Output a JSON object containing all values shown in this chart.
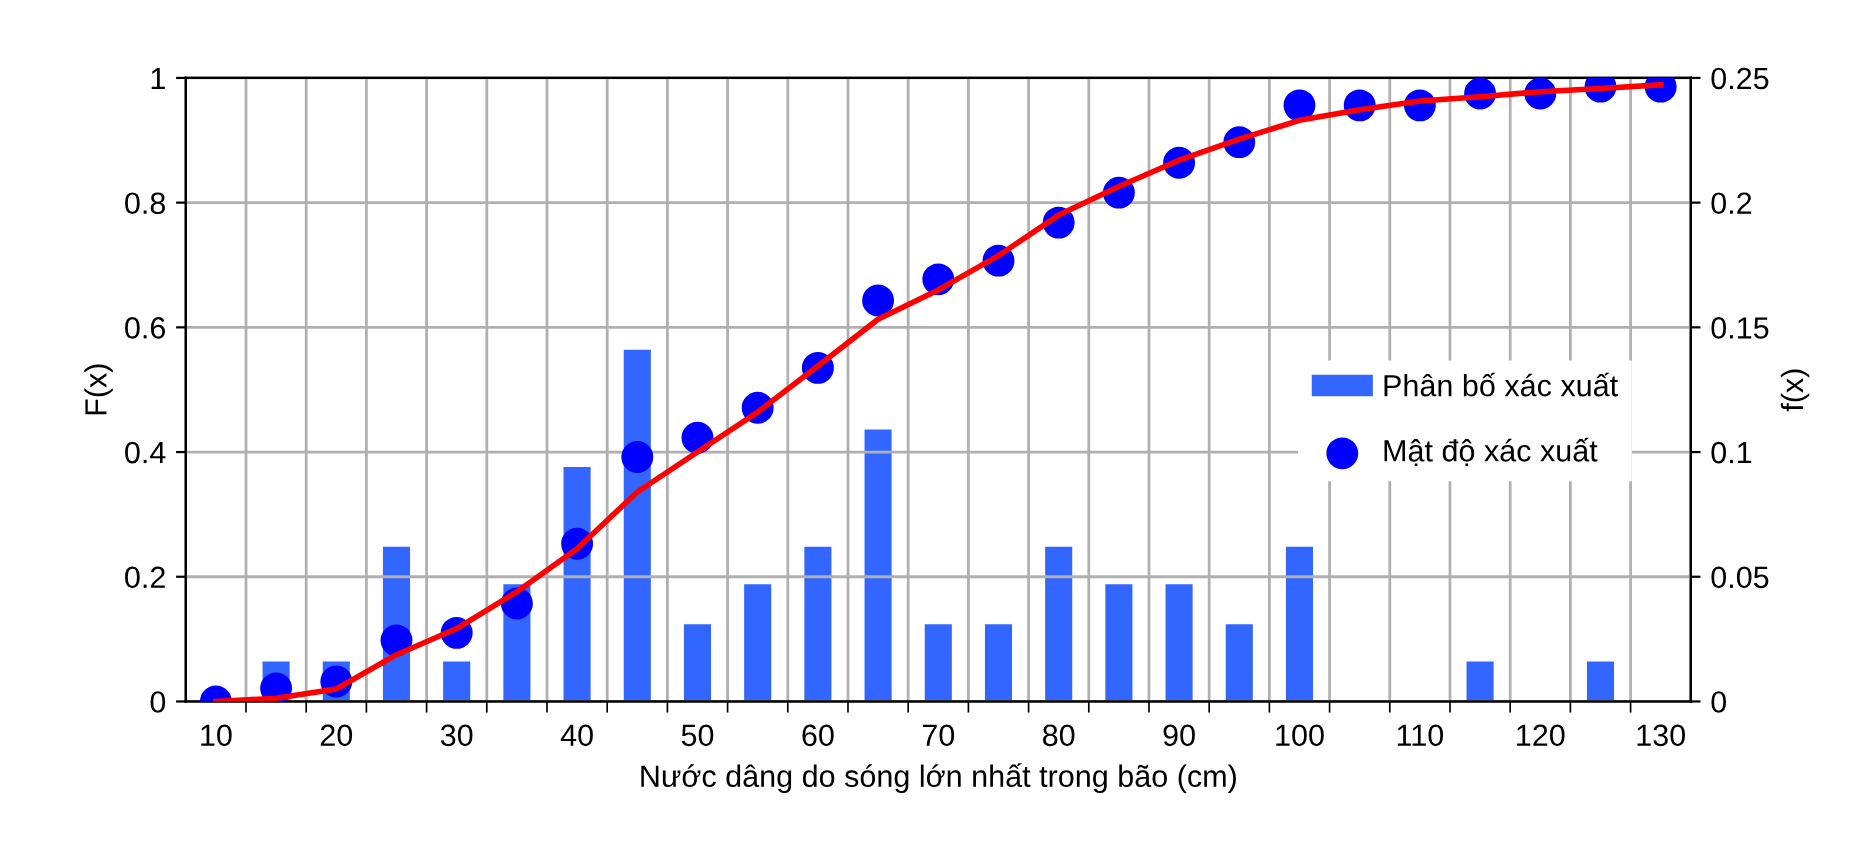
{
  "chart_data": {
    "type": "bar",
    "xlabel": "Nước dâng do sóng lớn nhất trong bão (cm)",
    "ylabel": "F(x)",
    "y2label": "f(x)",
    "categories": [
      "10",
      null,
      "20",
      null,
      "30",
      null,
      "40",
      null,
      "50",
      null,
      "60",
      null,
      "70",
      null,
      "80",
      null,
      "90",
      null,
      "100",
      null,
      "110",
      null,
      "120",
      null,
      "130"
    ],
    "series": [
      {
        "name": "Phân bố xác xuất",
        "axis": "y2",
        "color": "#3366ff",
        "values": [
          0,
          0.016,
          0.016,
          0.062,
          0.016,
          0.047,
          0.094,
          0.141,
          0.031,
          0.047,
          0.062,
          0.109,
          0.031,
          0.031,
          0.062,
          0.047,
          0.047,
          0.031,
          0.062,
          0,
          0,
          0.016,
          0,
          0.016,
          0
        ]
      },
      {
        "name": "Mật độ xác xuất",
        "type": "scatter",
        "axis": "y",
        "color": "#0000ff",
        "marker": "circle",
        "values": [
          0,
          0.021,
          0.032,
          0.098,
          0.11,
          0.157,
          0.253,
          0.392,
          0.423,
          0.471,
          0.535,
          0.643,
          0.677,
          0.707,
          0.768,
          0.816,
          0.864,
          0.897,
          0.956,
          0.956,
          0.956,
          0.975,
          0.975,
          0.986,
          0.986
        ]
      },
      {
        "type": "line",
        "axis": "y",
        "color": "#ff0000",
        "marker": "none",
        "line_style": "solid",
        "values": [
          0,
          0.005,
          0.02,
          0.075,
          0.117,
          0.176,
          0.245,
          0.336,
          0.4,
          0.464,
          0.538,
          0.613,
          0.66,
          0.715,
          0.78,
          0.826,
          0.868,
          0.902,
          0.932,
          0.949,
          0.963,
          0.97,
          0.978,
          0.983,
          0.989
        ]
      }
    ],
    "ylim": [
      0,
      1
    ],
    "yticks": [
      0,
      0.2,
      0.4,
      0.6,
      0.8,
      1
    ],
    "y2lim": [
      0,
      0.25
    ],
    "y2ticks": [
      0,
      0.05,
      0.1,
      0.15,
      0.2,
      0.25
    ],
    "grid": true,
    "legend": "center right"
  }
}
